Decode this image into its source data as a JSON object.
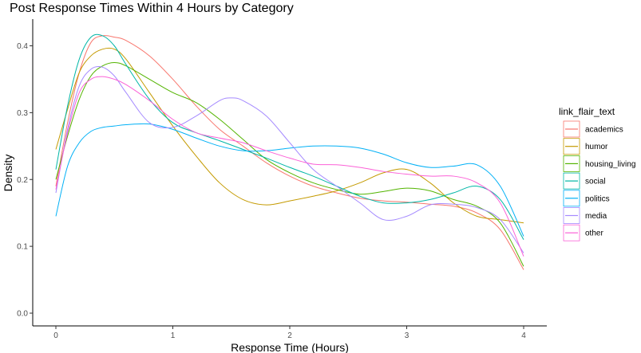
{
  "chart_data": {
    "type": "line",
    "title": "Post Response Times Within 4 Hours by Category",
    "xlabel": "Response Time (Hours)",
    "ylabel": "Density",
    "xlim": [
      0,
      4
    ],
    "ylim": [
      0,
      0.42
    ],
    "x_ticks": [
      0,
      1,
      2,
      3,
      4
    ],
    "x_tick_labels": [
      "0",
      "1",
      "2",
      "3",
      "4"
    ],
    "y_ticks": [
      0.0,
      0.1,
      0.2,
      0.3,
      0.4
    ],
    "y_tick_labels": [
      "0.0",
      "0.1",
      "0.2",
      "0.3",
      "0.4"
    ],
    "grid": false,
    "legend": {
      "title": "link_flair_text",
      "placement": "right"
    },
    "series": [
      {
        "name": "academics",
        "color": "#F8766D",
        "x": [
          0,
          0.1,
          0.2,
          0.3,
          0.4,
          0.5,
          0.6,
          0.8,
          1.0,
          1.2,
          1.4,
          1.6,
          1.8,
          2.0,
          2.2,
          2.4,
          2.6,
          2.8,
          3.0,
          3.2,
          3.4,
          3.6,
          3.8,
          4.0
        ],
        "y": [
          0.19,
          0.285,
          0.36,
          0.405,
          0.415,
          0.413,
          0.408,
          0.385,
          0.35,
          0.31,
          0.275,
          0.25,
          0.225,
          0.205,
          0.19,
          0.18,
          0.172,
          0.168,
          0.166,
          0.163,
          0.16,
          0.15,
          0.125,
          0.065
        ]
      },
      {
        "name": "humor",
        "color": "#C49A00",
        "x": [
          0,
          0.1,
          0.2,
          0.3,
          0.4,
          0.5,
          0.6,
          0.8,
          1.0,
          1.2,
          1.4,
          1.6,
          1.8,
          2.0,
          2.2,
          2.4,
          2.6,
          2.8,
          3.0,
          3.2,
          3.4,
          3.6,
          3.8,
          4.0
        ],
        "y": [
          0.245,
          0.305,
          0.36,
          0.385,
          0.395,
          0.395,
          0.38,
          0.33,
          0.28,
          0.235,
          0.195,
          0.17,
          0.162,
          0.168,
          0.175,
          0.183,
          0.195,
          0.21,
          0.215,
          0.195,
          0.165,
          0.145,
          0.14,
          0.135
        ]
      },
      {
        "name": "housing_living",
        "color": "#53B400",
        "x": [
          0,
          0.1,
          0.2,
          0.3,
          0.4,
          0.5,
          0.6,
          0.8,
          1.0,
          1.2,
          1.4,
          1.6,
          1.8,
          2.0,
          2.2,
          2.4,
          2.6,
          2.8,
          3.0,
          3.2,
          3.4,
          3.6,
          3.8,
          4.0
        ],
        "y": [
          0.2,
          0.265,
          0.32,
          0.355,
          0.37,
          0.375,
          0.37,
          0.35,
          0.33,
          0.315,
          0.29,
          0.26,
          0.23,
          0.21,
          0.195,
          0.185,
          0.178,
          0.182,
          0.187,
          0.183,
          0.17,
          0.16,
          0.135,
          0.07
        ]
      },
      {
        "name": "social",
        "color": "#00B6A6",
        "x": [
          0,
          0.1,
          0.2,
          0.3,
          0.4,
          0.5,
          0.6,
          0.8,
          1.0,
          1.2,
          1.4,
          1.6,
          1.8,
          2.0,
          2.2,
          2.4,
          2.6,
          2.8,
          3.0,
          3.2,
          3.4,
          3.6,
          3.8,
          4.0
        ],
        "y": [
          0.215,
          0.31,
          0.38,
          0.413,
          0.415,
          0.4,
          0.372,
          0.32,
          0.285,
          0.27,
          0.258,
          0.245,
          0.232,
          0.218,
          0.205,
          0.19,
          0.175,
          0.165,
          0.165,
          0.17,
          0.18,
          0.19,
          0.17,
          0.11
        ]
      },
      {
        "name": "politics",
        "color": "#00B0F6",
        "x": [
          0,
          0.1,
          0.2,
          0.3,
          0.4,
          0.5,
          0.6,
          0.8,
          1.0,
          1.2,
          1.4,
          1.6,
          1.8,
          2.0,
          2.2,
          2.4,
          2.6,
          2.8,
          3.0,
          3.2,
          3.4,
          3.6,
          3.8,
          4.0
        ],
        "y": [
          0.145,
          0.22,
          0.255,
          0.272,
          0.278,
          0.28,
          0.282,
          0.283,
          0.275,
          0.262,
          0.25,
          0.243,
          0.243,
          0.247,
          0.25,
          0.25,
          0.247,
          0.238,
          0.225,
          0.218,
          0.22,
          0.222,
          0.19,
          0.115
        ]
      },
      {
        "name": "media",
        "color": "#A58AFF",
        "x": [
          0,
          0.1,
          0.2,
          0.3,
          0.4,
          0.5,
          0.6,
          0.8,
          1.0,
          1.2,
          1.4,
          1.5,
          1.6,
          1.8,
          2.0,
          2.2,
          2.4,
          2.6,
          2.8,
          3.0,
          3.2,
          3.4,
          3.6,
          3.8,
          4.0
        ],
        "y": [
          0.18,
          0.275,
          0.34,
          0.365,
          0.368,
          0.355,
          0.33,
          0.285,
          0.278,
          0.295,
          0.318,
          0.322,
          0.318,
          0.295,
          0.255,
          0.215,
          0.19,
          0.165,
          0.14,
          0.145,
          0.162,
          0.163,
          0.158,
          0.14,
          0.09
        ]
      },
      {
        "name": "other",
        "color": "#FB61D7",
        "x": [
          0,
          0.1,
          0.2,
          0.3,
          0.4,
          0.5,
          0.6,
          0.8,
          1.0,
          1.2,
          1.4,
          1.6,
          1.8,
          2.0,
          2.2,
          2.4,
          2.6,
          2.8,
          3.0,
          3.2,
          3.4,
          3.6,
          3.8,
          4.0
        ],
        "y": [
          0.185,
          0.27,
          0.33,
          0.35,
          0.354,
          0.35,
          0.342,
          0.318,
          0.29,
          0.27,
          0.262,
          0.255,
          0.243,
          0.232,
          0.223,
          0.222,
          0.218,
          0.212,
          0.208,
          0.205,
          0.205,
          0.195,
          0.165,
          0.085
        ]
      }
    ]
  }
}
